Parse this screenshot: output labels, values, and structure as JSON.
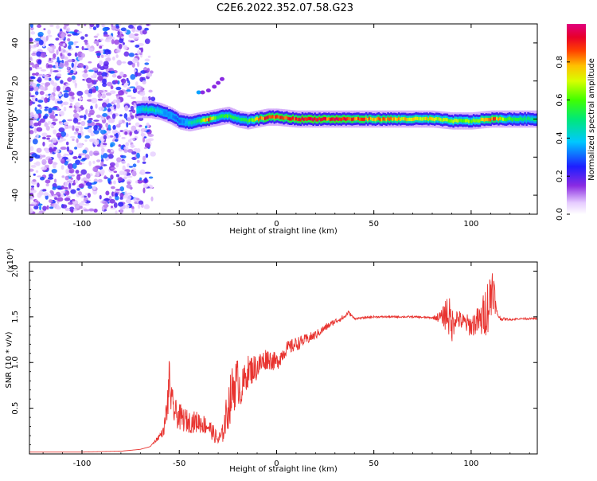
{
  "title": "C2E6.2022.352.07.58.G23",
  "chart_data": [
    {
      "type": "heatmap",
      "xlabel": "Height of straight line (km)",
      "ylabel": "Frequency (Hz)",
      "xlim": [
        -127,
        134
      ],
      "ylim": [
        -50,
        50
      ],
      "xticks": [
        -100,
        -50,
        0,
        50,
        100
      ],
      "yticks": [
        -40,
        -20,
        0,
        20,
        40
      ],
      "colorbar": {
        "label": "Normalized spectral amplitude",
        "range": [
          0,
          1
        ],
        "ticks": [
          0.0,
          0.2,
          0.4,
          0.6,
          0.8
        ]
      },
      "ridge": {
        "x": [
          -72,
          -65,
          -60,
          -55,
          -50,
          -45,
          -40,
          -35,
          -30,
          -25,
          -20,
          -15,
          -10,
          -5,
          0,
          10,
          20,
          40,
          60,
          80,
          90,
          100,
          110,
          120,
          134
        ],
        "y": [
          5,
          5,
          4,
          2,
          -1,
          -2,
          -1,
          0,
          1,
          2,
          0,
          -1,
          0,
          1,
          1,
          0,
          0,
          0,
          0,
          0,
          -1,
          -1,
          0,
          0,
          0
        ],
        "amplitude": [
          0.4,
          0.5,
          0.4,
          0.35,
          0.3,
          0.45,
          0.55,
          0.9,
          0.5,
          0.6,
          0.5,
          0.6,
          0.8,
          0.95,
          0.9,
          0.95,
          0.95,
          0.9,
          0.8,
          0.75,
          0.7,
          0.65,
          0.9,
          0.6,
          0.5
        ]
      },
      "noise_region_x": [
        -127,
        -72
      ],
      "branch": {
        "x": [
          -40,
          -38,
          -35,
          -32,
          -30,
          -28
        ],
        "y": [
          14,
          14,
          15,
          17,
          19,
          21
        ]
      }
    },
    {
      "type": "line",
      "xlabel": "Height of straight line (km)",
      "ylabel": "SNR (10 * v/v)",
      "yscale_label": "(x10⁴)",
      "xlim": [
        -127,
        134
      ],
      "ylim": [
        0,
        2.1
      ],
      "xticks": [
        -100,
        -50,
        0,
        50,
        100
      ],
      "yticks": [
        0.5,
        1.0,
        1.5,
        2.0
      ],
      "ytick_labels": [
        "0.5",
        "1.0",
        "1.5",
        "2.0"
      ],
      "x": [
        -127,
        -100,
        -80,
        -70,
        -65,
        -62,
        -58,
        -56,
        -55,
        -54,
        -52,
        -50,
        -45,
        -40,
        -35,
        -30,
        -28,
        -25,
        -22,
        -20,
        -18,
        -15,
        -10,
        -5,
        0,
        5,
        10,
        15,
        20,
        25,
        30,
        35,
        37,
        40,
        50,
        60,
        70,
        80,
        85,
        88,
        90,
        92,
        95,
        100,
        103,
        105,
        108,
        110,
        111,
        113,
        115,
        120,
        125,
        134
      ],
      "y": [
        0.02,
        0.02,
        0.03,
        0.05,
        0.08,
        0.15,
        0.25,
        0.55,
        0.85,
        0.55,
        0.45,
        0.4,
        0.35,
        0.35,
        0.3,
        0.15,
        0.2,
        0.5,
        0.75,
        0.8,
        0.7,
        0.9,
        0.95,
        1.05,
        1.0,
        1.15,
        1.2,
        1.25,
        1.3,
        1.38,
        1.45,
        1.5,
        1.55,
        1.48,
        1.5,
        1.5,
        1.5,
        1.49,
        1.5,
        1.55,
        1.4,
        1.5,
        1.45,
        1.4,
        1.45,
        1.45,
        1.6,
        1.7,
        1.9,
        1.55,
        1.48,
        1.47,
        1.48,
        1.48
      ],
      "noise_amplitude": [
        0.0,
        0.0,
        0.0,
        0.0,
        0.0,
        0.02,
        0.05,
        0.2,
        0.25,
        0.2,
        0.15,
        0.15,
        0.12,
        0.12,
        0.1,
        0.08,
        0.1,
        0.25,
        0.3,
        0.25,
        0.2,
        0.18,
        0.15,
        0.12,
        0.1,
        0.08,
        0.08,
        0.06,
        0.05,
        0.04,
        0.03,
        0.03,
        0.02,
        0.01,
        0.01,
        0.01,
        0.01,
        0.01,
        0.08,
        0.25,
        0.2,
        0.12,
        0.1,
        0.12,
        0.15,
        0.2,
        0.3,
        0.35,
        0.3,
        0.05,
        0.02,
        0.01,
        0.01,
        0.01
      ],
      "line_color": "#e8332f"
    }
  ]
}
